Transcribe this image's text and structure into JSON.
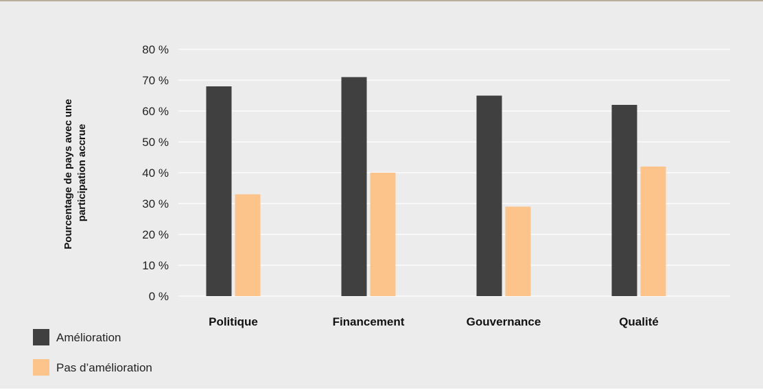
{
  "chart_data": {
    "type": "bar",
    "categories": [
      "Politique",
      "Financement",
      "Gouvernance",
      "Qualité"
    ],
    "series": [
      {
        "name": "Amélioration",
        "values": [
          68,
          71,
          65,
          62
        ],
        "color": "#404040"
      },
      {
        "name": "Pas d’amélioration",
        "values": [
          33,
          40,
          29,
          42
        ],
        "color": "#fcc48b"
      }
    ],
    "ylabel_lines": [
      "Pourcentage de pays avec une",
      "participation accrue"
    ],
    "ylim": [
      0,
      80
    ],
    "yticks": [
      0,
      10,
      20,
      30,
      40,
      50,
      60,
      70,
      80
    ],
    "ytick_suffix": " %",
    "grid": true,
    "grid_color": "#ffffff",
    "background": "#ececec",
    "legend_position": "bottom-left"
  }
}
